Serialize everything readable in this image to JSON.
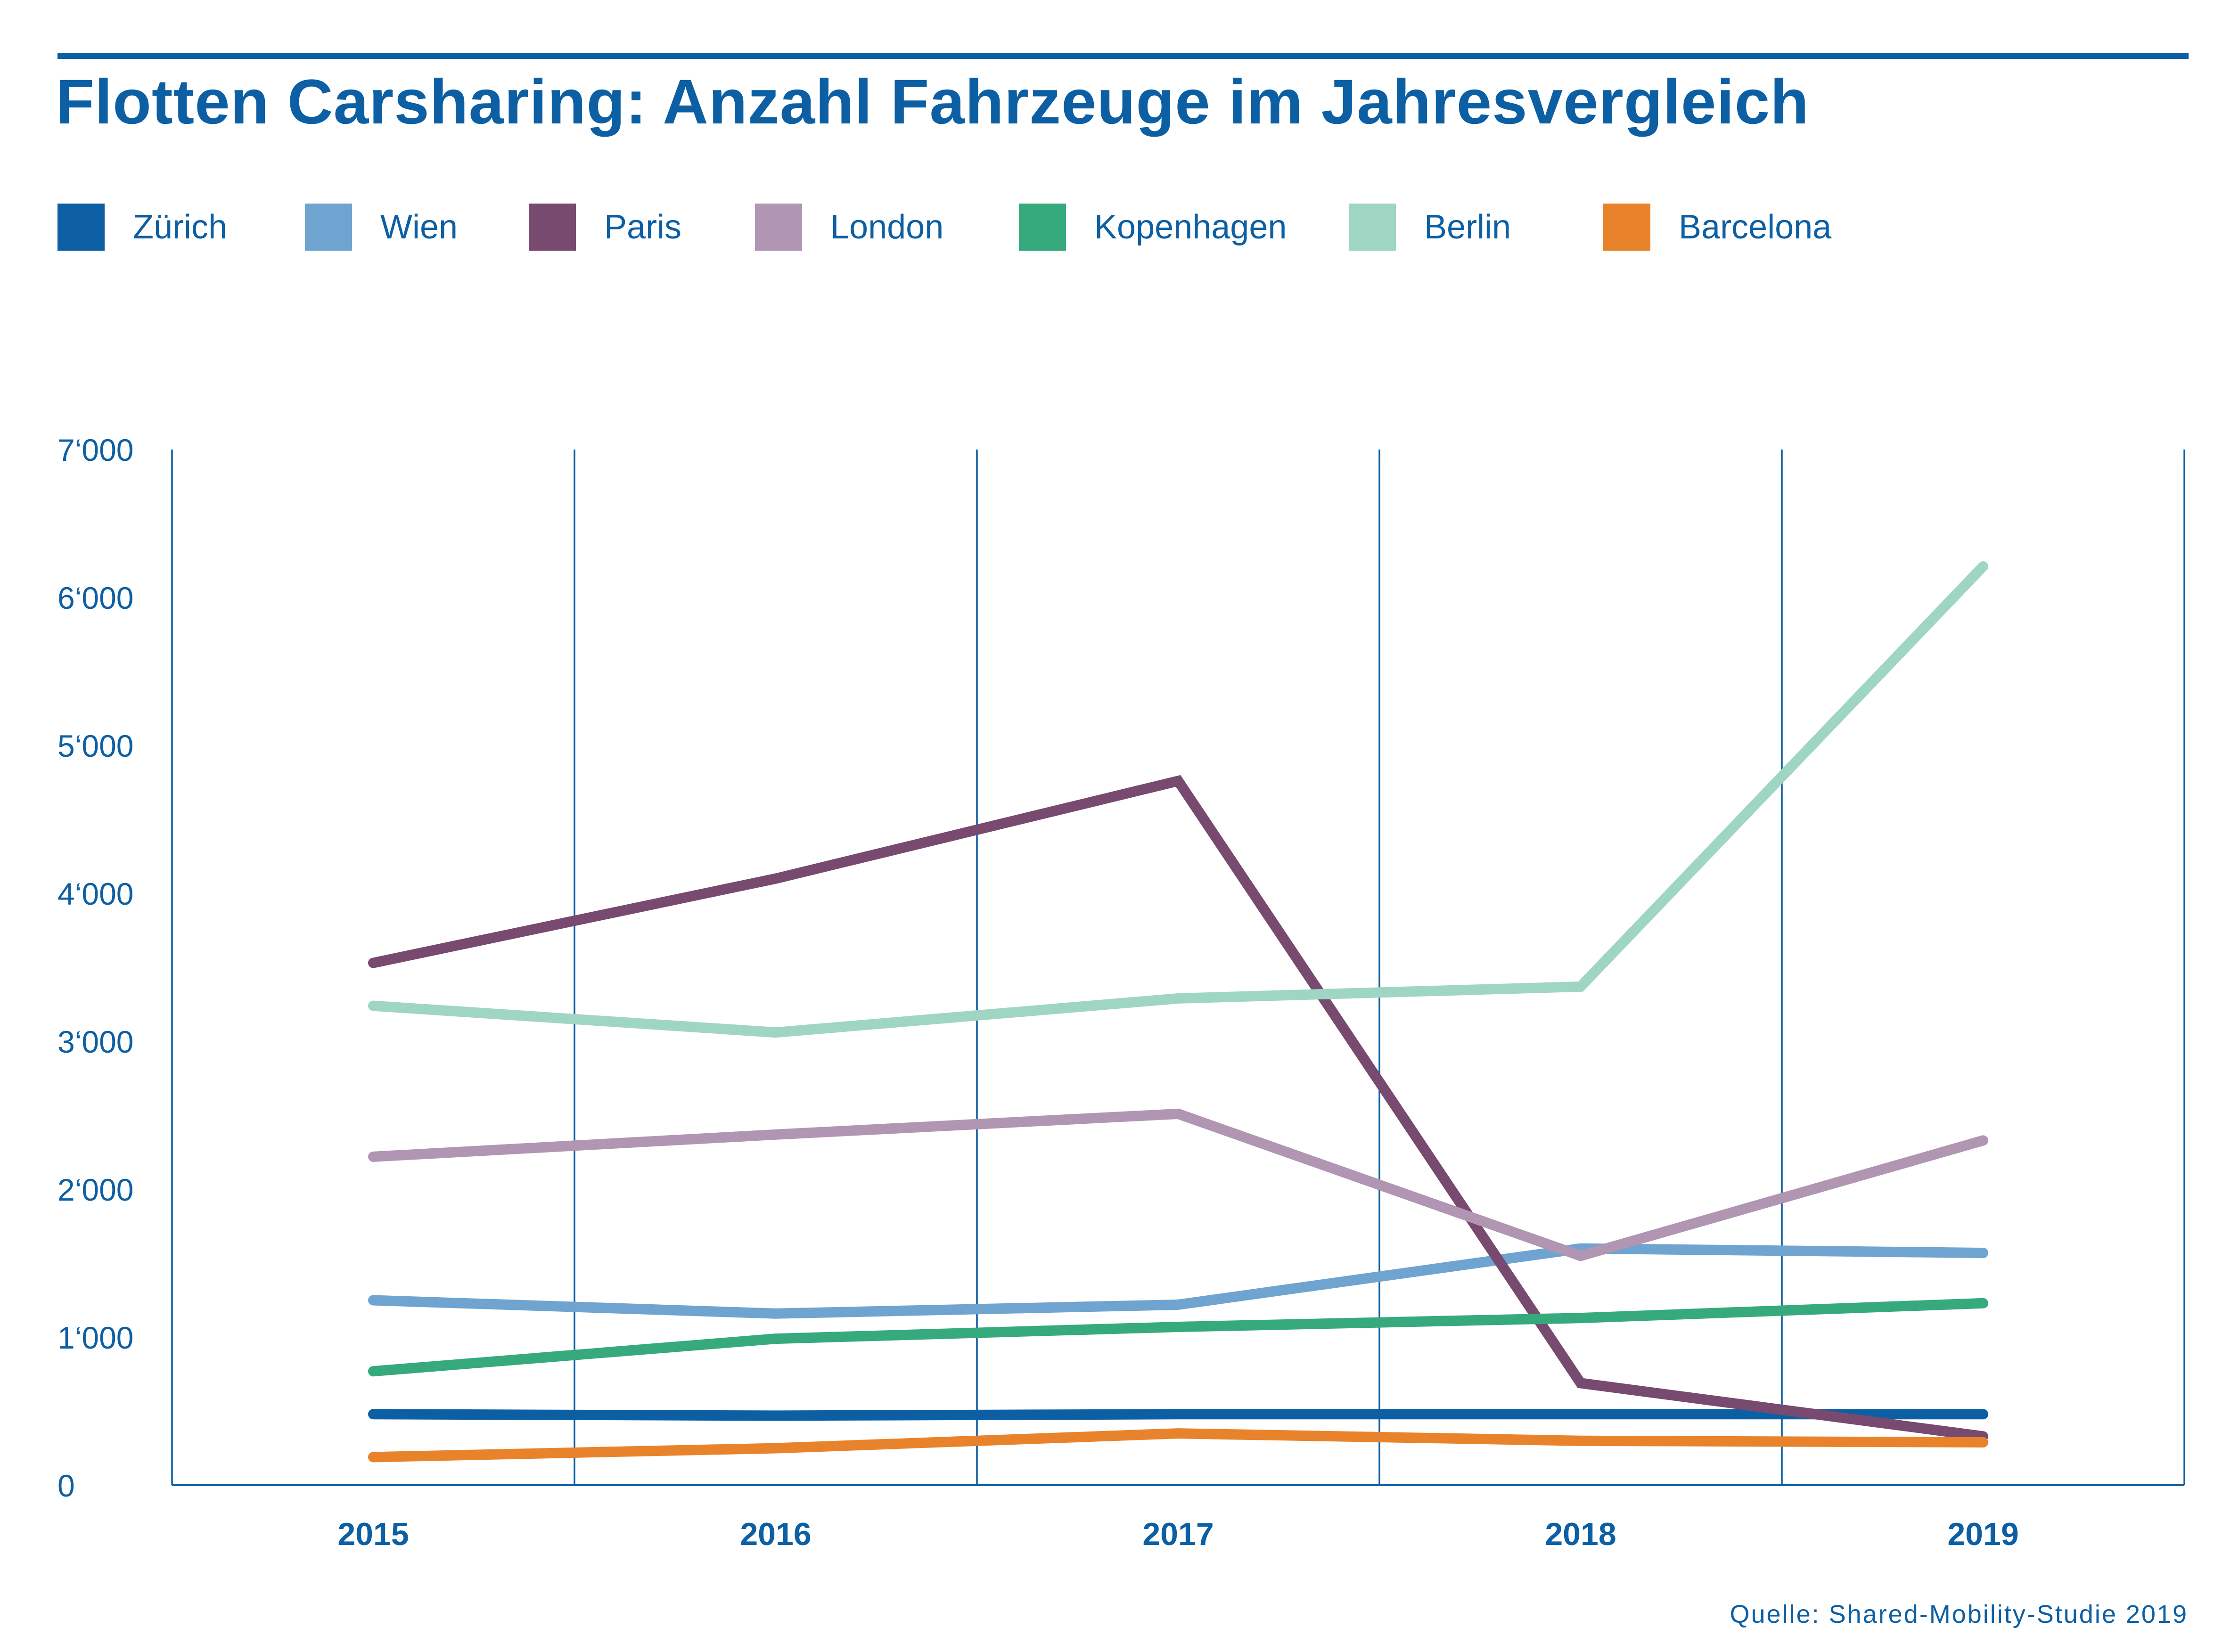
{
  "title": "Flotten Carsharing: Anzahl Fahrzeuge im Jahresvergleich",
  "source": "Quelle: Shared-Mobility-Studie 2019",
  "chart_data": {
    "type": "line",
    "title": "Flotten Carsharing: Anzahl Fahrzeuge im Jahresvergleich",
    "xlabel": "",
    "ylabel": "",
    "categories": [
      "2015",
      "2016",
      "2017",
      "2018",
      "2019"
    ],
    "ylim": [
      0,
      7000
    ],
    "yticks": [
      0,
      1000,
      2000,
      3000,
      4000,
      5000,
      6000,
      7000
    ],
    "ytick_labels": [
      "0",
      "1‘000",
      "2‘000",
      "3‘000",
      "4‘000",
      "5‘000",
      "6‘000",
      "7‘000"
    ],
    "grid": "vertical",
    "legend_position": "top-left",
    "series": [
      {
        "name": "Zürich",
        "color": "#0d5fa3",
        "values": [
          480,
          470,
          480,
          480,
          480
        ]
      },
      {
        "name": "Wien",
        "color": "#6ea4cf",
        "values": [
          1250,
          1160,
          1220,
          1600,
          1570
        ]
      },
      {
        "name": "Paris",
        "color": "#784a70",
        "values": [
          3530,
          4100,
          4760,
          690,
          330
        ]
      },
      {
        "name": "London",
        "color": "#b096b3",
        "values": [
          2220,
          2370,
          2510,
          1550,
          2330
        ]
      },
      {
        "name": "Kopenhagen",
        "color": "#36aa7d",
        "values": [
          770,
          990,
          1070,
          1130,
          1230
        ]
      },
      {
        "name": "Berlin",
        "color": "#9fd6c3",
        "values": [
          3240,
          3060,
          3290,
          3370,
          6210
        ]
      },
      {
        "name": "Barcelona",
        "color": "#e8832b",
        "values": [
          190,
          250,
          350,
          300,
          290
        ]
      }
    ]
  }
}
